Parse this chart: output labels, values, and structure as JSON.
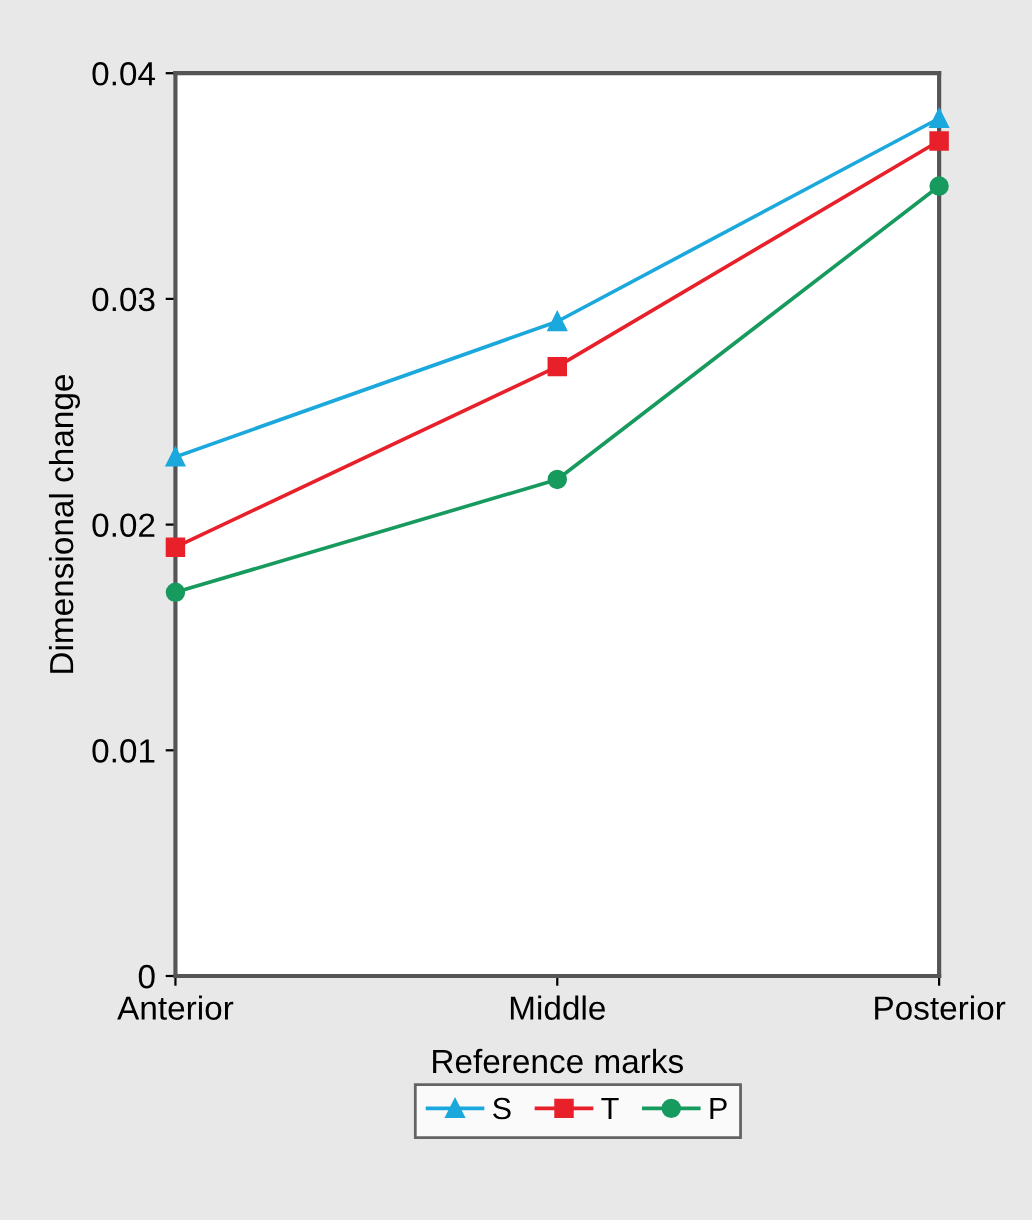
{
  "chart_data": {
    "type": "line",
    "xlabel": "Reference marks",
    "ylabel": "Dimensional change",
    "categories": [
      "Anterior",
      "Middle",
      "Posterior"
    ],
    "series": [
      {
        "name": "S",
        "color": "#1ba8dc",
        "marker": "triangle",
        "values": [
          0.023,
          0.029,
          0.038
        ]
      },
      {
        "name": "T",
        "color": "#e8202a",
        "marker": "square",
        "values": [
          0.019,
          0.027,
          0.037
        ]
      },
      {
        "name": "P",
        "color": "#179a5e",
        "marker": "circle",
        "values": [
          0.017,
          0.022,
          0.035
        ]
      }
    ],
    "ylim": [
      0,
      0.04
    ],
    "yticks": [
      0,
      0.01,
      0.02,
      0.03,
      0.04
    ],
    "grid": false,
    "legend": "bottom",
    "line_style": "solid"
  }
}
